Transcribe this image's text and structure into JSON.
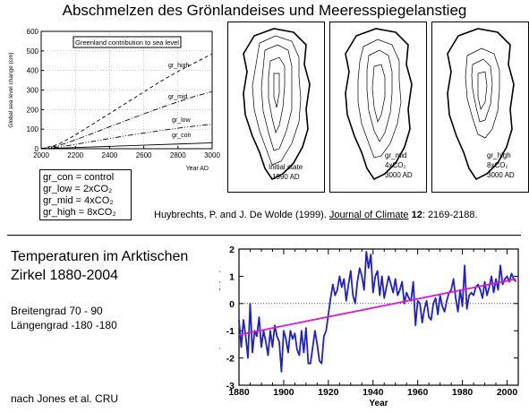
{
  "header": {
    "title": "Abschmelzen des Grönlandeises und Meeresspiegelanstieg"
  },
  "chart_data": [
    {
      "type": "line",
      "title": "Greenland contribution to sea level",
      "xlabel": "Year AD",
      "ylabel": "Global sea level change (cm)",
      "xlim": [
        2000,
        3000
      ],
      "ylim": [
        0,
        600
      ],
      "xticks": [
        "2000",
        "2200",
        "2400",
        "2600",
        "2800",
        "3000"
      ],
      "yticks": [
        "0",
        "100",
        "200",
        "300",
        "400",
        "500",
        "600"
      ],
      "series": [
        {
          "name": "gr_high",
          "style": "dashed",
          "x": [
            2000,
            2100,
            2200,
            2300,
            2400,
            2500,
            2600,
            2700,
            2800,
            2900,
            3000
          ],
          "values": [
            0,
            22,
            70,
            125,
            180,
            235,
            290,
            345,
            395,
            440,
            485
          ]
        },
        {
          "name": "gr_mid",
          "style": "dashdot",
          "x": [
            2000,
            2100,
            2200,
            2300,
            2400,
            2500,
            2600,
            2700,
            2800,
            2900,
            3000
          ],
          "values": [
            0,
            15,
            45,
            78,
            112,
            145,
            178,
            210,
            240,
            268,
            292
          ]
        },
        {
          "name": "gr_low",
          "style": "dash-dot-dot",
          "x": [
            2000,
            2100,
            2200,
            2300,
            2400,
            2500,
            2600,
            2700,
            2800,
            2900,
            3000
          ],
          "values": [
            0,
            8,
            22,
            37,
            52,
            67,
            80,
            93,
            105,
            116,
            125
          ]
        },
        {
          "name": "gr_con",
          "style": "solid",
          "x": [
            2000,
            2200,
            2400,
            2600,
            2800,
            3000
          ],
          "values": [
            0,
            6,
            12,
            18,
            24,
            30
          ]
        }
      ]
    },
    {
      "type": "line",
      "title": "",
      "xlabel": "Year",
      "ylabel": "Temperature Anomaly (°C)",
      "xlim": [
        1880,
        2004
      ],
      "ylim": [
        -3,
        2
      ],
      "xticks": [
        "1880",
        "1900",
        "1920",
        "1940",
        "1960",
        "1980",
        "2000"
      ],
      "yticks": [
        "-3",
        "-2",
        "-1",
        "0",
        "1",
        "2"
      ],
      "series": [
        {
          "name": "",
          "color": "#2020c8",
          "x_start": 1880,
          "values": [
            -0.6,
            -1.6,
            -0.6,
            -1.2,
            -2.0,
            0.0,
            -1.8,
            -1.0,
            -1.2,
            -0.5,
            -1.6,
            -1.0,
            -1.4,
            -1.9,
            -1.0,
            -1.6,
            -0.8,
            -1.2,
            -1.4,
            -2.5,
            -1.0,
            -1.3,
            -1.8,
            -1.0,
            -1.3,
            -1.1,
            -1.7,
            -1.9,
            -1.0,
            -1.8,
            -0.9,
            -2.2,
            -2.2,
            -1.6,
            -1.0,
            -1.5,
            -2.1,
            -2.2,
            -1.2,
            -1.0,
            -0.4,
            0.2,
            0.7,
            0.3,
            0.5,
            1.0,
            0.6,
            0.9,
            0.1,
            0.7,
            1.2,
            0.3,
            0.0,
            0.8,
            1.3,
            1.0,
            0.5,
            1.9,
            1.3,
            1.8,
            0.4,
            1.0,
            1.2,
            0.3,
            1.0,
            0.2,
            0.6,
            1.0,
            0.7,
            0.4,
            0.9,
            0.3,
            0.5,
            0.8,
            0.0,
            0.4,
            0.2,
            0.1,
            0.8,
            -0.8,
            0.1,
            0.0,
            -0.7,
            -0.2,
            0.1,
            -0.5,
            -0.6,
            0.0,
            0.2,
            -0.4,
            0.3,
            -0.1,
            -0.3,
            0.1,
            0.4,
            0.5,
            0.9,
            0.2,
            -0.3,
            0.5,
            -0.1,
            1.4,
            -0.2,
            0.3,
            0.4,
            0.3,
            0.6,
            0.7,
            0.5,
            0.2,
            0.8,
            0.3,
            0.6,
            1.0,
            0.4,
            0.9,
            0.5,
            1.4,
            0.7,
            0.9,
            1.0,
            0.8,
            1.1,
            0.9,
            0.8
          ]
        }
      ],
      "trend": {
        "color": "#d020d0",
        "x": [
          1880,
          2004
        ],
        "values": [
          -1.15,
          0.9
        ]
      }
    }
  ],
  "legend": {
    "items": [
      {
        "label": "gr_con = control"
      },
      {
        "label": "gr_low = 2xCO₂"
      },
      {
        "label": "gr_mid = 4xCO₂"
      },
      {
        "label": "gr_high = 8xCO₂"
      }
    ]
  },
  "maps": {
    "panels": [
      {
        "line1": "Initial state",
        "line2": "1990 AD"
      },
      {
        "line1": "gr_mid",
        "line2": "4xCO₂",
        "line3": "3000 AD"
      },
      {
        "line1": "gr_high",
        "line2": "8xCO₂",
        "line3": "3000 AD"
      }
    ]
  },
  "citation": {
    "authors": "Huybrechts, P. and J. De Wolde (1999). ",
    "journal": "Journal of Climate",
    "volume": " 12",
    "pages": ": 2169-2188."
  },
  "arctic": {
    "title_line1": "Temperaturen im Arktischen",
    "title_line2": "Zirkel 1880-2004",
    "latitude": "Breitengrad 70 - 90",
    "longitude": "Längengrad -180 -180",
    "source": "nach Jones et al. CRU"
  }
}
